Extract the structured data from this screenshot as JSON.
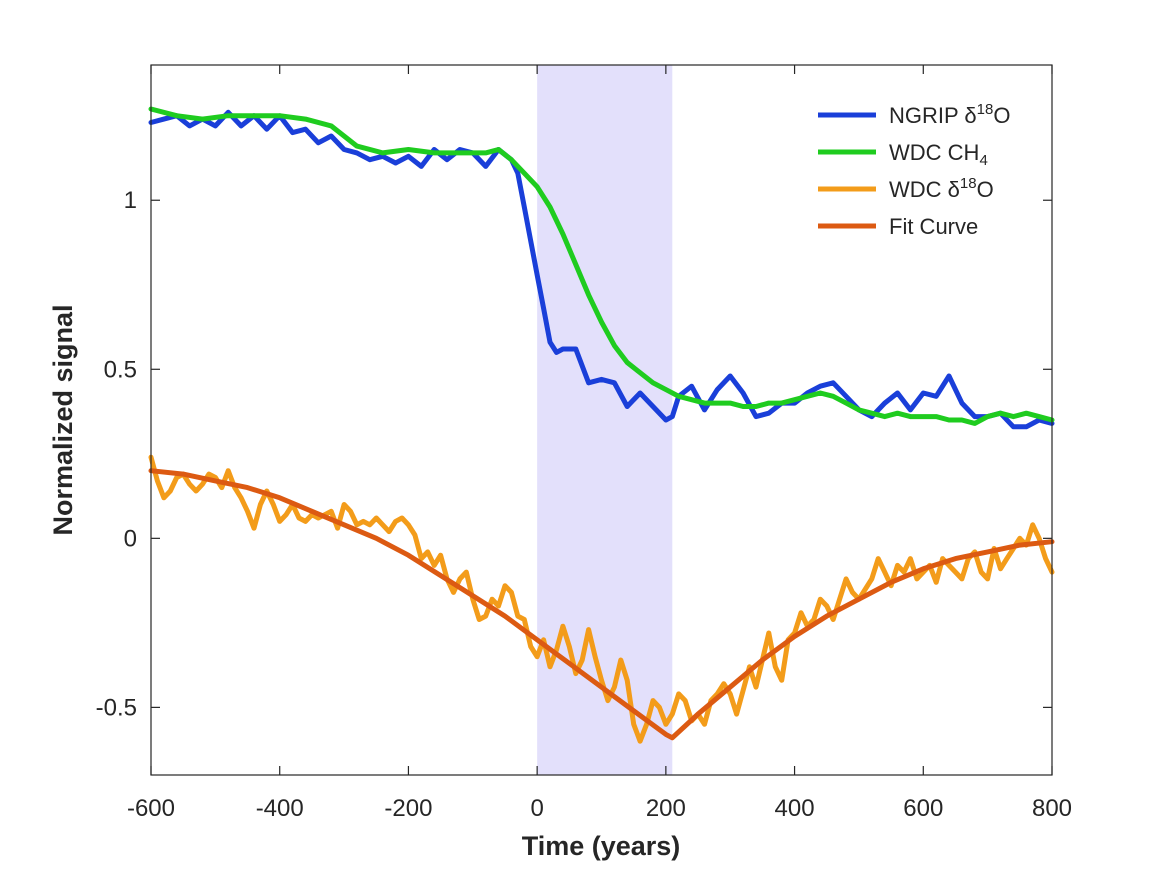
{
  "chart_data": {
    "type": "line",
    "xlabel": "Time (years)",
    "ylabel": "Normalized signal",
    "xlim": [
      -600,
      800
    ],
    "ylim": [
      -0.7,
      1.4
    ],
    "x_ticks": [
      -600,
      -400,
      -200,
      0,
      200,
      400,
      600,
      800
    ],
    "x_tick_labels": [
      "-600",
      "-400",
      "-200",
      "0",
      "200",
      "400",
      "600",
      "800"
    ],
    "y_ticks": [
      -0.5,
      0,
      0.5,
      1
    ],
    "y_tick_labels": [
      "-0.5",
      "0",
      "0.5",
      "1"
    ],
    "grid": false,
    "legend_position": "top-right",
    "shaded_region": {
      "x_start": 0,
      "x_end": 210,
      "color": "#e3e0fb"
    },
    "series": [
      {
        "name": "NGRIP δ18O",
        "label_main": "NGRIP δ",
        "label_sup": "18",
        "label_tail": "O",
        "color": "#1a3fd9",
        "x": [
          -600,
          -580,
          -560,
          -540,
          -520,
          -500,
          -480,
          -460,
          -440,
          -420,
          -400,
          -380,
          -360,
          -340,
          -320,
          -300,
          -280,
          -260,
          -240,
          -220,
          -200,
          -180,
          -160,
          -140,
          -120,
          -100,
          -80,
          -60,
          -40,
          -30,
          -20,
          -10,
          0,
          10,
          20,
          30,
          40,
          60,
          80,
          100,
          120,
          140,
          160,
          180,
          200,
          210,
          220,
          240,
          260,
          280,
          300,
          320,
          340,
          360,
          380,
          400,
          420,
          440,
          460,
          480,
          500,
          520,
          540,
          560,
          580,
          600,
          620,
          640,
          660,
          680,
          700,
          720,
          740,
          760,
          780,
          800
        ],
        "y": [
          1.23,
          1.24,
          1.25,
          1.22,
          1.24,
          1.22,
          1.26,
          1.22,
          1.25,
          1.21,
          1.25,
          1.2,
          1.21,
          1.17,
          1.19,
          1.15,
          1.14,
          1.12,
          1.13,
          1.11,
          1.13,
          1.1,
          1.15,
          1.12,
          1.15,
          1.14,
          1.1,
          1.15,
          1.12,
          1.08,
          0.98,
          0.88,
          0.78,
          0.68,
          0.58,
          0.55,
          0.56,
          0.56,
          0.46,
          0.47,
          0.46,
          0.39,
          0.43,
          0.39,
          0.35,
          0.36,
          0.42,
          0.45,
          0.38,
          0.44,
          0.48,
          0.43,
          0.36,
          0.37,
          0.4,
          0.4,
          0.43,
          0.45,
          0.46,
          0.42,
          0.38,
          0.36,
          0.4,
          0.43,
          0.38,
          0.43,
          0.42,
          0.48,
          0.4,
          0.36,
          0.36,
          0.37,
          0.33,
          0.33,
          0.35,
          0.34
        ]
      },
      {
        "name": "WDC CH4",
        "label_main": "WDC CH",
        "label_sub": "4",
        "color": "#1fcc1f",
        "x": [
          -600,
          -560,
          -520,
          -480,
          -440,
          -400,
          -360,
          -320,
          -280,
          -240,
          -200,
          -160,
          -120,
          -80,
          -60,
          -40,
          -20,
          0,
          20,
          40,
          60,
          80,
          100,
          120,
          140,
          160,
          180,
          200,
          220,
          240,
          260,
          280,
          300,
          320,
          340,
          360,
          380,
          400,
          420,
          440,
          460,
          480,
          500,
          520,
          540,
          560,
          580,
          600,
          620,
          640,
          660,
          680,
          700,
          720,
          740,
          760,
          780,
          800
        ],
        "y": [
          1.27,
          1.25,
          1.24,
          1.25,
          1.25,
          1.25,
          1.24,
          1.22,
          1.16,
          1.14,
          1.15,
          1.14,
          1.14,
          1.14,
          1.15,
          1.12,
          1.08,
          1.04,
          0.98,
          0.9,
          0.81,
          0.72,
          0.64,
          0.57,
          0.52,
          0.49,
          0.46,
          0.44,
          0.42,
          0.41,
          0.4,
          0.4,
          0.4,
          0.39,
          0.39,
          0.4,
          0.4,
          0.41,
          0.42,
          0.43,
          0.42,
          0.4,
          0.38,
          0.37,
          0.36,
          0.37,
          0.36,
          0.36,
          0.36,
          0.35,
          0.35,
          0.34,
          0.36,
          0.37,
          0.36,
          0.37,
          0.36,
          0.35
        ]
      },
      {
        "name": "WDC δ18O",
        "label_main": "WDC δ",
        "label_sup": "18",
        "label_tail": "O",
        "color": "#f39c1a",
        "x": [
          -600,
          -590,
          -580,
          -570,
          -560,
          -550,
          -540,
          -530,
          -520,
          -510,
          -500,
          -490,
          -480,
          -470,
          -460,
          -450,
          -440,
          -430,
          -420,
          -410,
          -400,
          -390,
          -380,
          -370,
          -360,
          -350,
          -340,
          -330,
          -320,
          -310,
          -300,
          -290,
          -280,
          -270,
          -260,
          -250,
          -240,
          -230,
          -220,
          -210,
          -200,
          -190,
          -180,
          -170,
          -160,
          -150,
          -140,
          -130,
          -120,
          -110,
          -100,
          -90,
          -80,
          -70,
          -60,
          -50,
          -40,
          -30,
          -20,
          -10,
          0,
          10,
          20,
          30,
          40,
          50,
          60,
          70,
          80,
          90,
          100,
          110,
          120,
          130,
          140,
          150,
          160,
          170,
          180,
          190,
          200,
          210,
          220,
          230,
          240,
          250,
          260,
          270,
          280,
          290,
          300,
          310,
          320,
          330,
          340,
          350,
          360,
          370,
          380,
          390,
          400,
          410,
          420,
          430,
          440,
          450,
          460,
          470,
          480,
          490,
          500,
          510,
          520,
          530,
          540,
          550,
          560,
          570,
          580,
          590,
          600,
          610,
          620,
          630,
          640,
          650,
          660,
          670,
          680,
          690,
          700,
          710,
          720,
          730,
          740,
          750,
          760,
          770,
          780,
          790,
          800
        ],
        "y": [
          0.24,
          0.17,
          0.12,
          0.14,
          0.18,
          0.19,
          0.16,
          0.14,
          0.16,
          0.19,
          0.18,
          0.15,
          0.2,
          0.15,
          0.12,
          0.08,
          0.03,
          0.1,
          0.14,
          0.1,
          0.05,
          0.07,
          0.1,
          0.06,
          0.05,
          0.07,
          0.06,
          0.07,
          0.08,
          0.03,
          0.1,
          0.08,
          0.04,
          0.05,
          0.04,
          0.06,
          0.04,
          0.02,
          0.05,
          0.06,
          0.04,
          0.01,
          -0.06,
          -0.04,
          -0.08,
          -0.05,
          -0.12,
          -0.16,
          -0.12,
          -0.1,
          -0.18,
          -0.24,
          -0.23,
          -0.18,
          -0.2,
          -0.14,
          -0.16,
          -0.23,
          -0.24,
          -0.32,
          -0.35,
          -0.3,
          -0.38,
          -0.33,
          -0.26,
          -0.32,
          -0.4,
          -0.36,
          -0.27,
          -0.35,
          -0.42,
          -0.48,
          -0.44,
          -0.36,
          -0.42,
          -0.55,
          -0.6,
          -0.55,
          -0.48,
          -0.5,
          -0.55,
          -0.52,
          -0.46,
          -0.48,
          -0.54,
          -0.52,
          -0.55,
          -0.48,
          -0.46,
          -0.43,
          -0.46,
          -0.52,
          -0.45,
          -0.38,
          -0.44,
          -0.36,
          -0.28,
          -0.38,
          -0.42,
          -0.3,
          -0.28,
          -0.22,
          -0.26,
          -0.24,
          -0.18,
          -0.2,
          -0.24,
          -0.18,
          -0.12,
          -0.16,
          -0.18,
          -0.15,
          -0.12,
          -0.06,
          -0.1,
          -0.14,
          -0.08,
          -0.1,
          -0.06,
          -0.12,
          -0.1,
          -0.08,
          -0.13,
          -0.06,
          -0.08,
          -0.1,
          -0.12,
          -0.06,
          -0.04,
          -0.1,
          -0.12,
          -0.03,
          -0.09,
          -0.06,
          -0.03,
          0.0,
          -0.02,
          0.04,
          0.0,
          -0.06,
          -0.1
        ]
      },
      {
        "name": "Fit Curve",
        "label_main": "Fit Curve",
        "color": "#dc5a12",
        "x": [
          -600,
          -550,
          -500,
          -450,
          -400,
          -350,
          -300,
          -250,
          -200,
          -150,
          -100,
          -50,
          0,
          50,
          100,
          150,
          200,
          210,
          250,
          300,
          350,
          400,
          450,
          500,
          550,
          600,
          650,
          700,
          750,
          800
        ],
        "y": [
          0.2,
          0.19,
          0.17,
          0.15,
          0.12,
          0.08,
          0.04,
          0.0,
          -0.05,
          -0.11,
          -0.17,
          -0.23,
          -0.3,
          -0.37,
          -0.44,
          -0.51,
          -0.58,
          -0.59,
          -0.52,
          -0.44,
          -0.36,
          -0.29,
          -0.23,
          -0.18,
          -0.13,
          -0.09,
          -0.06,
          -0.04,
          -0.02,
          -0.01
        ]
      }
    ]
  }
}
